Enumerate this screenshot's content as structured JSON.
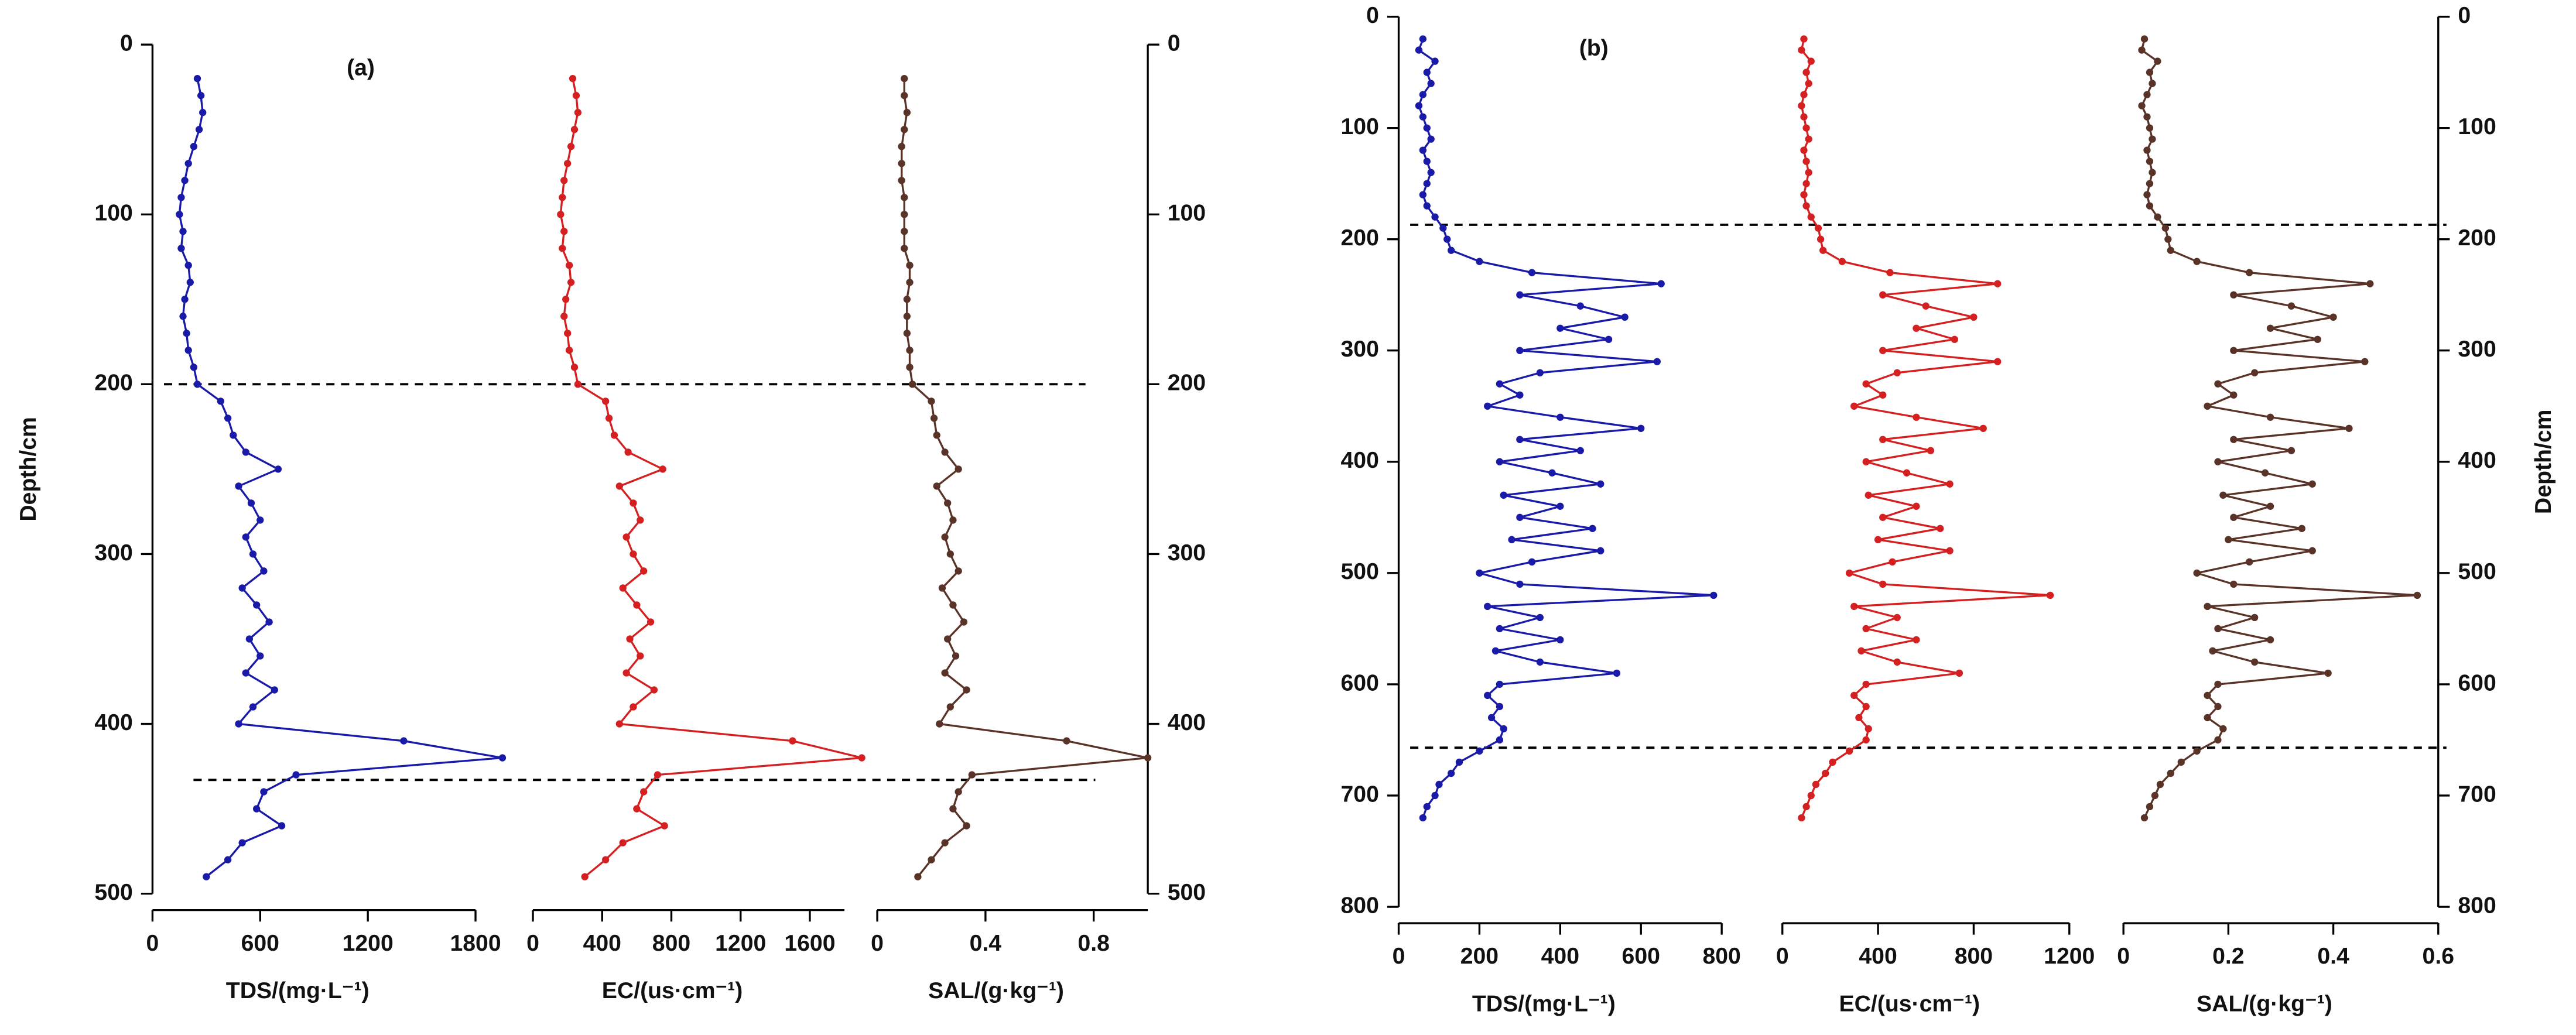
{
  "chart_data": [
    {
      "type": "line",
      "title": "(a)",
      "ylabel": "Depth/cm",
      "ylabel_side": "left",
      "ylim": [
        0,
        500
      ],
      "yticks": [
        0,
        100,
        200,
        300,
        400,
        500
      ],
      "y2ticks": [
        0,
        100,
        200,
        300,
        400,
        500
      ],
      "reference_lines": [
        200,
        433
      ],
      "depth": [
        20,
        30,
        40,
        50,
        60,
        70,
        80,
        90,
        100,
        110,
        120,
        130,
        140,
        150,
        160,
        170,
        180,
        190,
        200,
        210,
        220,
        230,
        240,
        250,
        260,
        270,
        280,
        290,
        300,
        310,
        320,
        330,
        340,
        350,
        360,
        370,
        380,
        390,
        400,
        410,
        420,
        430,
        440,
        450,
        460,
        470,
        480,
        490
      ],
      "series": [
        {
          "name": "TDS/(mg·L⁻¹)",
          "color": "#1a1aa8",
          "xlim": [
            0,
            1800
          ],
          "xticks": [
            0,
            600,
            1200,
            1800
          ],
          "values": [
            250,
            270,
            280,
            260,
            230,
            200,
            180,
            160,
            150,
            170,
            160,
            200,
            210,
            180,
            170,
            190,
            200,
            230,
            250,
            380,
            420,
            450,
            520,
            700,
            480,
            550,
            600,
            520,
            560,
            620,
            500,
            580,
            650,
            540,
            600,
            520,
            680,
            560,
            480,
            1400,
            1950,
            800,
            620,
            580,
            720,
            500,
            420,
            300
          ]
        },
        {
          "name": "EC/(us·cm⁻¹)",
          "color": "#d42020",
          "xlim": [
            0,
            1800
          ],
          "xticks": [
            0,
            400,
            800,
            1200,
            1600
          ],
          "values": [
            230,
            250,
            260,
            240,
            220,
            200,
            180,
            170,
            160,
            180,
            170,
            210,
            220,
            190,
            180,
            200,
            210,
            240,
            260,
            420,
            440,
            470,
            550,
            750,
            500,
            580,
            620,
            540,
            580,
            640,
            520,
            600,
            680,
            560,
            620,
            540,
            700,
            580,
            500,
            1500,
            1900,
            720,
            640,
            600,
            760,
            520,
            420,
            300
          ]
        },
        {
          "name": "SAL/(g·kg⁻¹)",
          "color": "#5a3328",
          "xlim": [
            0,
            1.0
          ],
          "xticks": [
            0,
            0.4,
            0.8
          ],
          "values": [
            0.1,
            0.1,
            0.11,
            0.1,
            0.09,
            0.09,
            0.09,
            0.1,
            0.1,
            0.1,
            0.1,
            0.12,
            0.12,
            0.11,
            0.11,
            0.11,
            0.12,
            0.12,
            0.13,
            0.2,
            0.21,
            0.22,
            0.25,
            0.3,
            0.22,
            0.26,
            0.28,
            0.25,
            0.27,
            0.3,
            0.24,
            0.28,
            0.32,
            0.26,
            0.29,
            0.25,
            0.33,
            0.27,
            0.23,
            0.7,
            1.0,
            0.35,
            0.3,
            0.28,
            0.33,
            0.25,
            0.2,
            0.15
          ]
        }
      ]
    },
    {
      "type": "line",
      "title": "(b)",
      "ylabel": "Depth/cm",
      "ylabel_side": "right",
      "ylim": [
        0,
        800
      ],
      "yticks": [
        0,
        100,
        200,
        300,
        400,
        500,
        600,
        700,
        800
      ],
      "y2ticks": [
        0,
        100,
        200,
        300,
        400,
        500,
        600,
        700,
        800
      ],
      "reference_lines": [
        187,
        657
      ],
      "depth": [
        20,
        30,
        40,
        50,
        60,
        70,
        80,
        90,
        100,
        110,
        120,
        130,
        140,
        150,
        160,
        170,
        180,
        190,
        200,
        210,
        220,
        230,
        240,
        250,
        260,
        270,
        280,
        290,
        300,
        310,
        320,
        330,
        340,
        350,
        360,
        370,
        380,
        390,
        400,
        410,
        420,
        430,
        440,
        450,
        460,
        470,
        480,
        490,
        500,
        510,
        520,
        530,
        540,
        550,
        560,
        570,
        580,
        590,
        600,
        610,
        620,
        630,
        640,
        650,
        660,
        670,
        680,
        690,
        700,
        710,
        720
      ],
      "series": [
        {
          "name": "TDS/(mg·L⁻¹)",
          "color": "#1a1aa8",
          "xlim": [
            0,
            800
          ],
          "xticks": [
            0,
            200,
            400,
            600,
            800
          ],
          "values": [
            60,
            50,
            90,
            70,
            80,
            60,
            50,
            60,
            70,
            80,
            60,
            70,
            80,
            70,
            60,
            70,
            90,
            110,
            120,
            130,
            200,
            330,
            650,
            300,
            450,
            560,
            400,
            520,
            300,
            640,
            350,
            250,
            300,
            220,
            400,
            600,
            300,
            450,
            250,
            380,
            500,
            260,
            400,
            300,
            480,
            280,
            500,
            330,
            200,
            300,
            780,
            220,
            350,
            250,
            400,
            240,
            350,
            540,
            250,
            220,
            250,
            230,
            260,
            250,
            200,
            150,
            130,
            100,
            90,
            70,
            60
          ]
        },
        {
          "name": "EC/(us·cm⁻¹)",
          "color": "#d42020",
          "xlim": [
            0,
            1200
          ],
          "xticks": [
            0,
            400,
            800,
            1200
          ],
          "values": [
            90,
            80,
            120,
            100,
            110,
            90,
            80,
            90,
            100,
            110,
            90,
            100,
            110,
            100,
            90,
            100,
            120,
            150,
            160,
            170,
            250,
            450,
            900,
            420,
            600,
            800,
            560,
            720,
            420,
            900,
            480,
            350,
            420,
            300,
            560,
            840,
            420,
            620,
            350,
            520,
            700,
            360,
            560,
            420,
            660,
            400,
            700,
            460,
            280,
            420,
            1120,
            300,
            480,
            350,
            560,
            330,
            480,
            740,
            350,
            300,
            350,
            320,
            360,
            350,
            280,
            210,
            180,
            140,
            120,
            100,
            80
          ]
        },
        {
          "name": "SAL/(g·kg⁻¹)",
          "color": "#5a3328",
          "xlim": [
            0,
            0.6
          ],
          "xticks": [
            0,
            0.2,
            0.4,
            0.6
          ],
          "values": [
            0.04,
            0.035,
            0.065,
            0.05,
            0.055,
            0.045,
            0.035,
            0.045,
            0.05,
            0.055,
            0.045,
            0.05,
            0.055,
            0.05,
            0.045,
            0.05,
            0.065,
            0.08,
            0.085,
            0.09,
            0.14,
            0.24,
            0.47,
            0.21,
            0.32,
            0.4,
            0.28,
            0.37,
            0.21,
            0.46,
            0.25,
            0.18,
            0.21,
            0.16,
            0.28,
            0.43,
            0.21,
            0.32,
            0.18,
            0.27,
            0.36,
            0.19,
            0.28,
            0.21,
            0.34,
            0.2,
            0.36,
            0.24,
            0.14,
            0.21,
            0.56,
            0.16,
            0.25,
            0.18,
            0.28,
            0.17,
            0.25,
            0.39,
            0.18,
            0.16,
            0.18,
            0.16,
            0.19,
            0.18,
            0.14,
            0.11,
            0.09,
            0.07,
            0.06,
            0.05,
            0.04
          ]
        }
      ]
    }
  ]
}
